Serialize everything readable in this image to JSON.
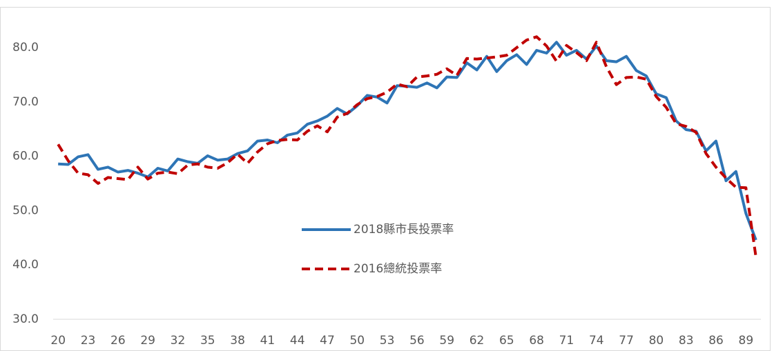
{
  "chart_data": {
    "type": "line",
    "x": [
      20,
      21,
      22,
      23,
      24,
      25,
      26,
      27,
      28,
      29,
      30,
      31,
      32,
      33,
      34,
      35,
      36,
      37,
      38,
      39,
      40,
      41,
      42,
      43,
      44,
      45,
      46,
      47,
      48,
      49,
      50,
      51,
      52,
      53,
      54,
      55,
      56,
      57,
      58,
      59,
      60,
      61,
      62,
      63,
      64,
      65,
      66,
      67,
      68,
      69,
      70,
      71,
      72,
      73,
      74,
      75,
      76,
      77,
      78,
      79,
      80,
      81,
      82,
      83,
      84,
      85,
      86,
      87,
      88,
      89,
      90
    ],
    "series": [
      {
        "name": "2018縣市長投票率",
        "color": "#2e75b6",
        "dash": false,
        "values": [
          58.6,
          58.5,
          59.9,
          60.3,
          57.6,
          58.0,
          57.1,
          57.4,
          56.9,
          56.2,
          57.8,
          57.3,
          59.5,
          59.0,
          58.7,
          60.1,
          59.3,
          59.5,
          60.5,
          61.0,
          62.8,
          63.0,
          62.5,
          63.9,
          64.3,
          65.9,
          66.5,
          67.4,
          68.8,
          67.8,
          69.3,
          71.2,
          70.9,
          69.8,
          73.0,
          72.9,
          72.7,
          73.5,
          72.6,
          74.6,
          74.5,
          77.2,
          75.9,
          78.4,
          75.6,
          77.6,
          78.7,
          76.9,
          79.5,
          79.0,
          81.0,
          78.6,
          79.5,
          77.9,
          80.3,
          77.6,
          77.4,
          78.4,
          75.8,
          74.8,
          71.5,
          70.8,
          66.5,
          64.9,
          64.6,
          61.0,
          62.8,
          55.5,
          57.2,
          49.5,
          44.6
        ]
      },
      {
        "name": "2016總統投票率",
        "color": "#c00000",
        "dash": true,
        "values": [
          62.2,
          59.2,
          56.9,
          56.6,
          55.0,
          56.1,
          55.9,
          55.7,
          58.0,
          55.8,
          56.9,
          57.1,
          56.8,
          58.4,
          58.6,
          58.0,
          57.8,
          58.8,
          60.4,
          58.7,
          60.8,
          62.3,
          62.9,
          63.1,
          63.0,
          64.6,
          65.6,
          64.5,
          67.2,
          67.9,
          69.5,
          70.6,
          71.0,
          71.8,
          73.3,
          72.8,
          74.6,
          74.8,
          75.1,
          76.1,
          74.9,
          78.0,
          77.9,
          78.1,
          78.3,
          78.6,
          80.0,
          81.4,
          82.0,
          80.3,
          77.5,
          80.4,
          79.1,
          77.6,
          81.0,
          76.5,
          73.2,
          74.5,
          74.6,
          74.2,
          71.0,
          69.0,
          66.0,
          65.5,
          64.4,
          60.5,
          58.0,
          56.0,
          54.3,
          54.2,
          41.5
        ]
      }
    ],
    "xlim": [
      19.5,
      90.5
    ],
    "xticks": [
      20,
      23,
      26,
      29,
      32,
      35,
      38,
      41,
      44,
      47,
      50,
      53,
      56,
      59,
      62,
      65,
      68,
      71,
      74,
      77,
      80,
      83,
      86,
      89
    ],
    "ylim": [
      30,
      87.5
    ],
    "yticks": [
      {
        "value": 30,
        "label": "30.0"
      },
      {
        "value": 40,
        "label": "40.0"
      },
      {
        "value": 50,
        "label": "50.0"
      },
      {
        "value": 60,
        "label": "60.0"
      },
      {
        "value": 70,
        "label": "70.0"
      },
      {
        "value": 80,
        "label": "80.0"
      }
    ],
    "grid": false
  }
}
